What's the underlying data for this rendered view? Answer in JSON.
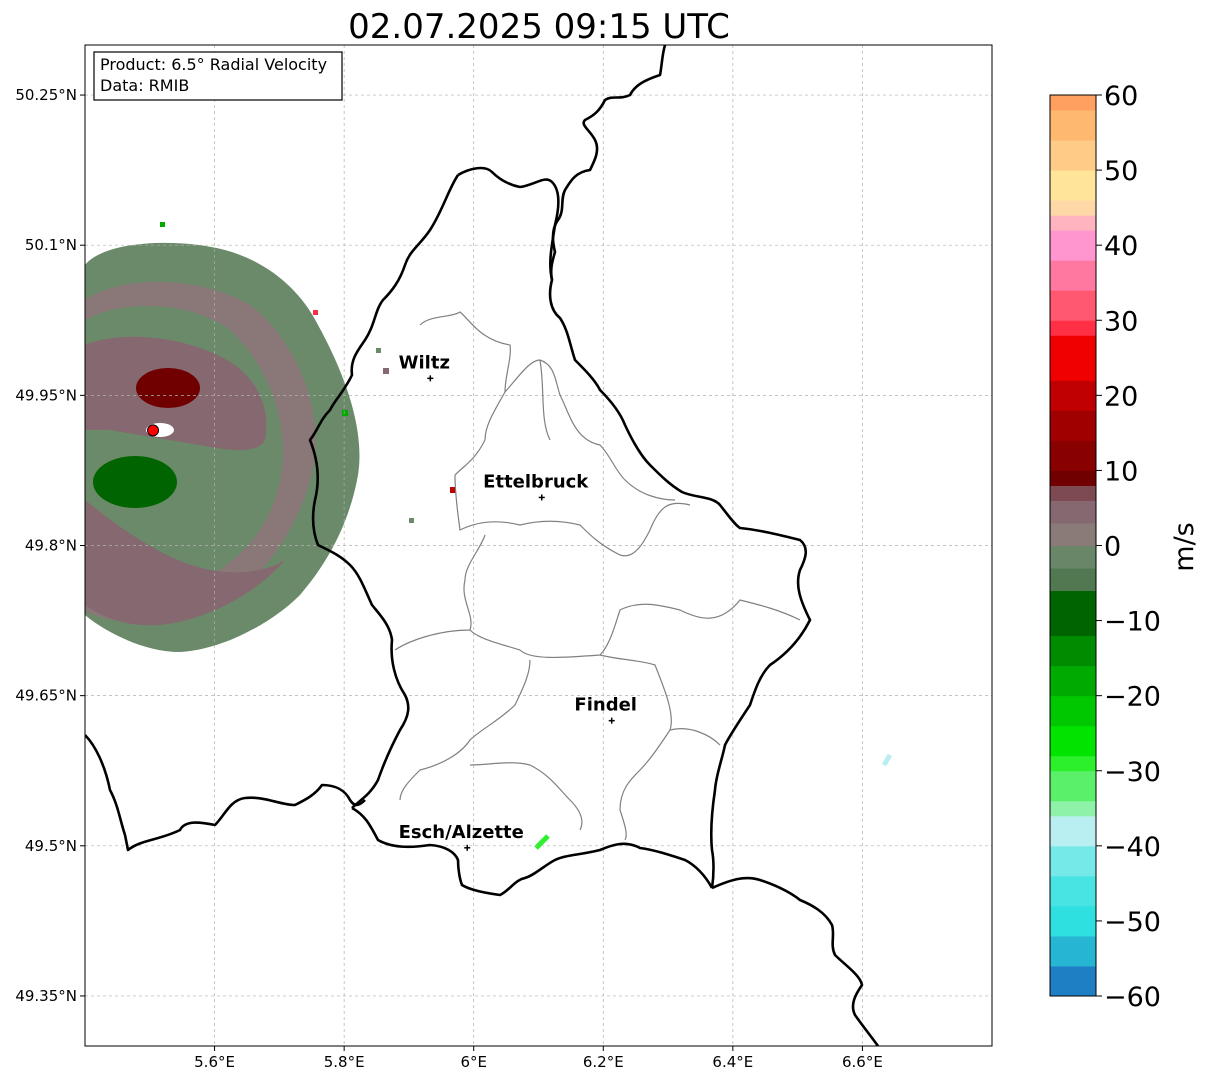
{
  "title": "02.07.2025 09:15 UTC",
  "info_box": {
    "product": "Product: 6.5° Radial Velocity",
    "source": "Data: RMIB"
  },
  "map": {
    "lon_range": [
      5.4,
      6.8
    ],
    "lat_range": [
      49.3,
      50.3
    ],
    "lon_ticks": [
      {
        "value": 5.6,
        "label": "5.6°E"
      },
      {
        "value": 5.8,
        "label": "5.8°E"
      },
      {
        "value": 6.0,
        "label": "6°E"
      },
      {
        "value": 6.2,
        "label": "6.2°E"
      },
      {
        "value": 6.4,
        "label": "6.4°E"
      },
      {
        "value": 6.6,
        "label": "6.6°E"
      }
    ],
    "lat_ticks": [
      {
        "value": 50.25,
        "label": "50.25°N"
      },
      {
        "value": 50.1,
        "label": "50.1°N"
      },
      {
        "value": 49.95,
        "label": "49.95°N"
      },
      {
        "value": 49.8,
        "label": "49.8°N"
      },
      {
        "value": 49.65,
        "label": "49.65°N"
      },
      {
        "value": 49.5,
        "label": "49.5°N"
      },
      {
        "value": 49.35,
        "label": "49.35°N"
      }
    ],
    "radar_site": {
      "lon": 5.505,
      "lat": 49.915,
      "color": "#ff0000"
    },
    "cities": [
      {
        "name": "Wiltz",
        "lon": 5.933,
        "lat": 49.967
      },
      {
        "name": "Ettelbruck",
        "lon": 6.105,
        "lat": 49.848
      },
      {
        "name": "Findel",
        "lon": 6.213,
        "lat": 49.625
      },
      {
        "name": "Esch/Alzette",
        "lon": 5.99,
        "lat": 49.498
      }
    ]
  },
  "colorbar": {
    "unit_label": "m/s",
    "min": -60,
    "max": 60,
    "ticks": [
      {
        "value": 60,
        "label": "60"
      },
      {
        "value": 50,
        "label": "50"
      },
      {
        "value": 40,
        "label": "40"
      },
      {
        "value": 30,
        "label": "30"
      },
      {
        "value": 20,
        "label": "20"
      },
      {
        "value": 10,
        "label": "10"
      },
      {
        "value": 0,
        "label": "0"
      },
      {
        "value": -10,
        "label": "−10"
      },
      {
        "value": -20,
        "label": "−20"
      },
      {
        "value": -30,
        "label": "−30"
      },
      {
        "value": -40,
        "label": "−40"
      },
      {
        "value": -50,
        "label": "−50"
      },
      {
        "value": -60,
        "label": "−60"
      }
    ],
    "color_stops": [
      {
        "from": -60,
        "to": -56,
        "color": "#1f7fc4"
      },
      {
        "from": -56,
        "to": -52,
        "color": "#26b5d2"
      },
      {
        "from": -52,
        "to": -48,
        "color": "#2ee0e0"
      },
      {
        "from": -48,
        "to": -44,
        "color": "#48e3e3"
      },
      {
        "from": -44,
        "to": -40,
        "color": "#75e8e8"
      },
      {
        "from": -40,
        "to": -36,
        "color": "#b9eff0"
      },
      {
        "from": -36,
        "to": -34,
        "color": "#8ef3a8"
      },
      {
        "from": -34,
        "to": -30,
        "color": "#5af06a"
      },
      {
        "from": -30,
        "to": -28,
        "color": "#2cf02c"
      },
      {
        "from": -28,
        "to": -24,
        "color": "#00e400"
      },
      {
        "from": -24,
        "to": -20,
        "color": "#00c800"
      },
      {
        "from": -20,
        "to": -16,
        "color": "#00aa00"
      },
      {
        "from": -16,
        "to": -12,
        "color": "#008c00"
      },
      {
        "from": -12,
        "to": -6,
        "color": "#006400"
      },
      {
        "from": -6,
        "to": -3,
        "color": "#527852"
      },
      {
        "from": -3,
        "to": 0,
        "color": "#6a8668"
      },
      {
        "from": 0,
        "to": 3,
        "color": "#8a7a78"
      },
      {
        "from": 3,
        "to": 6,
        "color": "#866870"
      },
      {
        "from": 6,
        "to": 8,
        "color": "#7e4a52"
      },
      {
        "from": 8,
        "to": 10,
        "color": "#700000"
      },
      {
        "from": 10,
        "to": 14,
        "color": "#880000"
      },
      {
        "from": 14,
        "to": 18,
        "color": "#a00000"
      },
      {
        "from": 18,
        "to": 22,
        "color": "#c00000"
      },
      {
        "from": 22,
        "to": 28,
        "color": "#f00000"
      },
      {
        "from": 28,
        "to": 30,
        "color": "#ff3045"
      },
      {
        "from": 30,
        "to": 34,
        "color": "#ff5870"
      },
      {
        "from": 34,
        "to": 38,
        "color": "#ff78a0"
      },
      {
        "from": 38,
        "to": 42,
        "color": "#ff96cf"
      },
      {
        "from": 42,
        "to": 44,
        "color": "#ffb4c0"
      },
      {
        "from": 44,
        "to": 46,
        "color": "#ffd8a8"
      },
      {
        "from": 46,
        "to": 50,
        "color": "#ffe49a"
      },
      {
        "from": 50,
        "to": 54,
        "color": "#ffcc88"
      },
      {
        "from": 54,
        "to": 58,
        "color": "#ffb870"
      },
      {
        "from": 58,
        "to": 60,
        "color": "#ffa060"
      }
    ]
  }
}
